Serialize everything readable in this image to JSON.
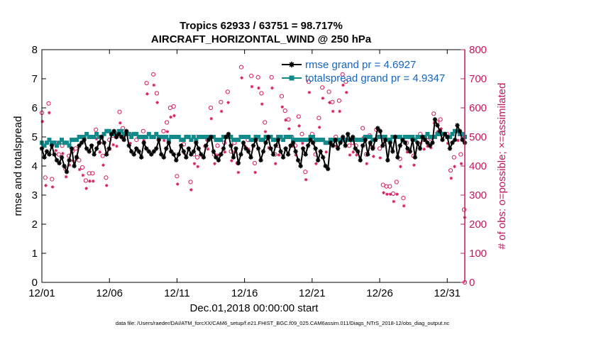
{
  "chart_data": {
    "type": "line",
    "title": "Tropics 62933 / 63751 = 98.717%",
    "subtitle": "AIRCRAFT_HORIZONTAL_WIND @ 250 hPa",
    "xlabel": "Dec.01,2018 00:00:00 start",
    "ylabel": "rmse and totalspread",
    "ylabel_right": "# of obs: o=possible; ×=assimilated",
    "footer": "data file: /Users/raeder/DAI/ATM_forcXX/CAM6_setup/f.e21.FHIST_BGC.f09_025.CAM6assim.011/Diags_NTrS_2018-12/obs_diag_output.nc",
    "x_ticks": [
      "12/01",
      "12/06",
      "12/11",
      "12/16",
      "12/21",
      "12/26",
      "12/31"
    ],
    "x_tick_days": [
      0,
      5,
      10,
      15,
      20,
      25,
      30
    ],
    "xlim": [
      0,
      31.3
    ],
    "ylim": [
      0,
      8
    ],
    "y_ticks": [
      "0",
      "1",
      "2",
      "3",
      "4",
      "5",
      "6",
      "7",
      "8"
    ],
    "ylim_right": [
      0,
      800
    ],
    "y_ticks_right": [
      "0",
      "100",
      "200",
      "300",
      "400",
      "500",
      "600",
      "700",
      "800"
    ],
    "legend_position": "top-right",
    "colors": {
      "rmse": "#000000",
      "spread": "#138a8a",
      "obs": "#d81b60",
      "right_axis": "#c2185b"
    },
    "series": [
      {
        "name": "rmse grand pr = 4.6927",
        "marker": "asterisk",
        "values": [
          4.6,
          4.3,
          4.5,
          4.4,
          4.7,
          4.4,
          4.2,
          4.1,
          4.3,
          4.0,
          3.8,
          4.2,
          4.6,
          4.0,
          4.3,
          4.7,
          4.8,
          4.9,
          4.6,
          4.5,
          4.7,
          4.4,
          4.6,
          4.8,
          5.0,
          4.8,
          4.4,
          4.6,
          5.1,
          5.2,
          5.0,
          5.1,
          5.0,
          4.9,
          5.2,
          4.7,
          4.5,
          4.4,
          4.6,
          4.5,
          4.3,
          4.8,
          4.6,
          4.5,
          4.4,
          4.5,
          4.6,
          4.9,
          4.4,
          4.3,
          4.6,
          4.8,
          4.5,
          4.4,
          4.2,
          4.4,
          4.7,
          4.5,
          4.3,
          4.6,
          4.4,
          4.5,
          4.8,
          4.6,
          4.4,
          4.3,
          4.7,
          4.9,
          5.0,
          4.5,
          4.3,
          4.2,
          4.4,
          4.6,
          5.0,
          5.1,
          4.7,
          4.3,
          4.6,
          4.1,
          4.4,
          4.8,
          4.6,
          4.5,
          4.3,
          4.7,
          4.9,
          4.6,
          4.2,
          4.5,
          4.8,
          5.0,
          4.6,
          4.4,
          4.7,
          4.9,
          4.5,
          4.3,
          4.6,
          4.4,
          4.7,
          4.8,
          4.5,
          4.2,
          4.0,
          4.6,
          4.4,
          4.7,
          4.9,
          4.8,
          4.6,
          4.2,
          4.5,
          4.3,
          4.0,
          3.9,
          4.8,
          4.7,
          4.9,
          4.6,
          4.8,
          5.0,
          4.7,
          5.1,
          4.9,
          5.0,
          4.6,
          4.5,
          4.2,
          4.7,
          4.9,
          4.4,
          4.8,
          4.6,
          4.9,
          5.3,
          5.2,
          4.7,
          4.9,
          4.2,
          4.8,
          4.5,
          5.0,
          4.3,
          4.7,
          4.9,
          4.8,
          4.6,
          4.5,
          4.9,
          4.3,
          4.8,
          4.6,
          5.0,
          4.9,
          4.8,
          4.7,
          4.8,
          5.6,
          5.4,
          5.2,
          4.9,
          5.1,
          5.0,
          4.6,
          4.8,
          4.9,
          5.4,
          5.2,
          4.9,
          4.8
        ]
      },
      {
        "name": "totalspread grand pr = 4.9347",
        "marker": "square",
        "values": [
          4.8,
          4.7,
          4.8,
          4.9,
          4.8,
          4.8,
          4.7,
          4.8,
          4.9,
          4.8,
          4.8,
          4.7,
          4.9,
          4.9,
          4.9,
          5.0,
          5.0,
          5.0,
          5.1,
          5.0,
          5.0,
          5.0,
          5.1,
          5.0,
          5.0,
          5.1,
          5.2,
          5.2,
          5.1,
          5.1,
          5.1,
          5.2,
          5.2,
          5.1,
          5.1,
          5.1,
          5.0,
          5.1,
          5.1,
          5.0,
          5.0,
          5.0,
          5.0,
          5.1,
          5.0,
          5.0,
          5.1,
          5.0,
          5.0,
          5.0,
          5.0,
          4.9,
          5.0,
          5.0,
          5.0,
          5.0,
          4.9,
          4.9,
          5.0,
          5.0,
          4.9,
          5.0,
          4.9,
          5.0,
          5.0,
          5.0,
          5.0,
          5.0,
          5.0,
          5.0,
          4.9,
          4.9,
          4.9,
          5.0,
          5.0,
          5.0,
          5.0,
          4.9,
          4.9,
          4.9,
          5.0,
          5.0,
          5.0,
          5.0,
          4.9,
          4.9,
          5.0,
          5.0,
          4.9,
          4.9,
          5.0,
          5.0,
          5.0,
          4.9,
          4.9,
          5.0,
          5.0,
          4.9,
          5.0,
          5.0,
          5.0,
          4.9,
          4.9,
          4.9,
          4.9,
          4.9,
          4.9,
          4.9,
          5.0,
          5.0,
          4.9,
          4.9,
          4.9,
          4.9,
          4.8,
          4.8,
          4.9,
          4.9,
          4.9,
          4.9,
          4.9,
          4.9,
          4.9,
          4.9,
          4.9,
          4.9,
          4.9,
          4.9,
          4.9,
          4.9,
          5.0,
          5.0,
          5.0,
          4.9,
          4.9,
          5.0,
          5.0,
          5.0,
          5.0,
          4.9,
          4.9,
          5.0,
          5.0,
          5.0,
          5.0,
          4.9,
          5.0,
          5.0,
          5.0,
          5.0,
          4.9,
          5.0,
          5.0,
          5.0,
          5.0,
          5.1,
          5.0,
          5.0,
          5.0,
          5.1,
          5.1,
          5.1,
          5.1,
          5.0,
          5.0,
          5.1,
          5.2,
          5.2,
          5.1,
          5.1,
          5.0
        ]
      }
    ],
    "obs_possible": [
      [
        0.0,
        583
      ],
      [
        0.25,
        360
      ],
      [
        0.5,
        615
      ],
      [
        0.75,
        355
      ],
      [
        1.0,
        480
      ],
      [
        1.25,
        440
      ],
      [
        1.5,
        470
      ],
      [
        1.75,
        390
      ],
      [
        2.0,
        435
      ],
      [
        2.25,
        450
      ],
      [
        2.5,
        460
      ],
      [
        2.75,
        420
      ],
      [
        3.0,
        395
      ],
      [
        3.25,
        350
      ],
      [
        3.5,
        375
      ],
      [
        3.75,
        375
      ],
      [
        4.0,
        525
      ],
      [
        4.25,
        480
      ],
      [
        4.5,
        435
      ],
      [
        4.75,
        360
      ],
      [
        5.0,
        490
      ],
      [
        5.25,
        505
      ],
      [
        5.5,
        500
      ],
      [
        5.75,
        586
      ],
      [
        6.0,
        530
      ],
      [
        6.5,
        510
      ],
      [
        7.0,
        490
      ],
      [
        7.5,
        520
      ],
      [
        7.75,
        685
      ],
      [
        8.25,
        715
      ],
      [
        8.5,
        650
      ],
      [
        9.0,
        520
      ],
      [
        9.25,
        550
      ],
      [
        9.5,
        600
      ],
      [
        9.75,
        605
      ],
      [
        10.0,
        365
      ],
      [
        10.5,
        475
      ],
      [
        11.0,
        345
      ],
      [
        11.25,
        440
      ],
      [
        11.5,
        430
      ],
      [
        12.0,
        500
      ],
      [
        12.25,
        490
      ],
      [
        12.5,
        600
      ],
      [
        12.75,
        440
      ],
      [
        13.0,
        470
      ],
      [
        13.25,
        620
      ],
      [
        13.5,
        480
      ],
      [
        13.75,
        655
      ],
      [
        14.0,
        450
      ],
      [
        14.25,
        480
      ],
      [
        14.5,
        410
      ],
      [
        14.75,
        740
      ],
      [
        15.0,
        500
      ],
      [
        15.25,
        490
      ],
      [
        15.5,
        710
      ],
      [
        15.75,
        410
      ],
      [
        16.0,
        705
      ],
      [
        16.25,
        650
      ],
      [
        16.5,
        550
      ],
      [
        16.75,
        495
      ],
      [
        17.0,
        705
      ],
      [
        17.25,
        440
      ],
      [
        17.5,
        470
      ],
      [
        17.75,
        640
      ],
      [
        18.0,
        590
      ],
      [
        18.25,
        560
      ],
      [
        18.5,
        500
      ],
      [
        18.75,
        470
      ],
      [
        19.0,
        570
      ],
      [
        19.25,
        510
      ],
      [
        19.5,
        380
      ],
      [
        19.75,
        690
      ],
      [
        20.0,
        510
      ],
      [
        20.25,
        440
      ],
      [
        20.5,
        565
      ],
      [
        20.75,
        670
      ],
      [
        21.0,
        480
      ],
      [
        21.25,
        655
      ],
      [
        21.5,
        620
      ],
      [
        21.75,
        500
      ],
      [
        22.0,
        625
      ],
      [
        22.25,
        715
      ],
      [
        22.5,
        690
      ],
      [
        22.75,
        470
      ],
      [
        23.0,
        480
      ],
      [
        23.25,
        470
      ],
      [
        23.75,
        530
      ],
      [
        24.0,
        440
      ],
      [
        24.25,
        505
      ],
      [
        24.5,
        465
      ],
      [
        24.75,
        525
      ],
      [
        25.0,
        460
      ],
      [
        25.25,
        335
      ],
      [
        25.5,
        330
      ],
      [
        25.75,
        330
      ],
      [
        26.0,
        305
      ],
      [
        26.25,
        345
      ],
      [
        26.5,
        425
      ],
      [
        26.75,
        290
      ],
      [
        27.0,
        480
      ],
      [
        27.5,
        435
      ],
      [
        28.0,
        510
      ],
      [
        28.25,
        490
      ],
      [
        28.5,
        500
      ],
      [
        28.75,
        495
      ],
      [
        29.0,
        580
      ],
      [
        29.25,
        550
      ],
      [
        29.5,
        560
      ],
      [
        30.0,
        510
      ],
      [
        30.25,
        385
      ],
      [
        30.5,
        430
      ],
      [
        30.75,
        520
      ],
      [
        31.0,
        440
      ],
      [
        31.25,
        250
      ],
      [
        31.3,
        0
      ]
    ],
    "obs_assimilated": [
      [
        0.0,
        575
      ],
      [
        0.25,
        355
      ],
      [
        0.5,
        605
      ],
      [
        0.75,
        350
      ],
      [
        1.0,
        475
      ],
      [
        1.25,
        430
      ],
      [
        1.5,
        465
      ],
      [
        1.75,
        385
      ],
      [
        2.0,
        425
      ],
      [
        2.25,
        440
      ],
      [
        2.5,
        455
      ],
      [
        2.75,
        410
      ],
      [
        3.0,
        390
      ],
      [
        3.25,
        345
      ],
      [
        3.5,
        370
      ],
      [
        3.75,
        370
      ],
      [
        4.0,
        515
      ],
      [
        4.25,
        470
      ],
      [
        4.5,
        425
      ],
      [
        4.75,
        355
      ],
      [
        5.0,
        480
      ],
      [
        5.25,
        495
      ],
      [
        5.5,
        490
      ],
      [
        5.75,
        570
      ],
      [
        6.0,
        520
      ],
      [
        6.5,
        500
      ],
      [
        7.0,
        480
      ],
      [
        7.5,
        510
      ],
      [
        7.75,
        670
      ],
      [
        8.25,
        700
      ],
      [
        8.5,
        640
      ],
      [
        9.0,
        510
      ],
      [
        9.25,
        540
      ],
      [
        9.5,
        590
      ],
      [
        9.75,
        595
      ],
      [
        10.0,
        360
      ],
      [
        10.5,
        465
      ],
      [
        11.0,
        340
      ],
      [
        11.25,
        430
      ],
      [
        11.5,
        420
      ],
      [
        12.0,
        490
      ],
      [
        12.25,
        480
      ],
      [
        12.5,
        585
      ],
      [
        12.75,
        430
      ],
      [
        13.0,
        460
      ],
      [
        13.25,
        610
      ],
      [
        13.5,
        470
      ],
      [
        13.75,
        640
      ],
      [
        14.0,
        440
      ],
      [
        14.25,
        470
      ],
      [
        14.5,
        400
      ],
      [
        14.75,
        725
      ],
      [
        15.0,
        490
      ],
      [
        15.25,
        480
      ],
      [
        15.5,
        695
      ],
      [
        15.75,
        400
      ],
      [
        16.0,
        690
      ],
      [
        16.25,
        635
      ],
      [
        16.5,
        540
      ],
      [
        16.75,
        485
      ],
      [
        17.0,
        690
      ],
      [
        17.25,
        430
      ],
      [
        17.5,
        460
      ],
      [
        17.75,
        625
      ],
      [
        18.0,
        580
      ],
      [
        18.25,
        550
      ],
      [
        18.5,
        490
      ],
      [
        18.75,
        460
      ],
      [
        19.0,
        560
      ],
      [
        19.25,
        500
      ],
      [
        19.5,
        375
      ],
      [
        19.75,
        675
      ],
      [
        20.0,
        500
      ],
      [
        20.25,
        430
      ],
      [
        20.5,
        555
      ],
      [
        20.75,
        655
      ],
      [
        21.0,
        470
      ],
      [
        21.25,
        640
      ],
      [
        21.5,
        610
      ],
      [
        21.75,
        490
      ],
      [
        22.0,
        610
      ],
      [
        22.25,
        700
      ],
      [
        22.5,
        675
      ],
      [
        22.75,
        460
      ],
      [
        23.0,
        470
      ],
      [
        23.25,
        460
      ],
      [
        23.75,
        520
      ],
      [
        24.0,
        430
      ],
      [
        24.25,
        495
      ],
      [
        24.5,
        455
      ],
      [
        24.75,
        515
      ],
      [
        25.0,
        450
      ],
      [
        25.25,
        330
      ],
      [
        25.5,
        325
      ],
      [
        25.75,
        325
      ],
      [
        26.0,
        300
      ],
      [
        26.25,
        325
      ],
      [
        26.5,
        420
      ],
      [
        26.75,
        285
      ],
      [
        27.0,
        470
      ],
      [
        27.5,
        425
      ],
      [
        28.0,
        500
      ],
      [
        28.25,
        480
      ],
      [
        28.5,
        490
      ],
      [
        28.75,
        485
      ],
      [
        29.0,
        570
      ],
      [
        29.25,
        540
      ],
      [
        29.5,
        550
      ],
      [
        30.0,
        500
      ],
      [
        30.25,
        380
      ],
      [
        30.5,
        420
      ],
      [
        30.75,
        510
      ],
      [
        31.0,
        430
      ],
      [
        31.25,
        245
      ]
    ]
  }
}
